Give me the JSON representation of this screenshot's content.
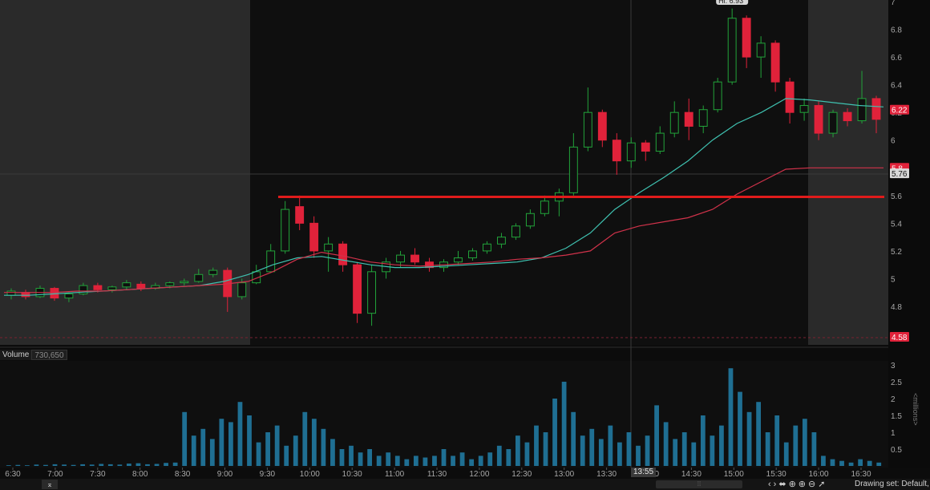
{
  "chart_data": [
    {
      "type": "candlestick",
      "title": "",
      "price_axis": {
        "ylim": [
          4.58,
          7.0
        ],
        "ticks": [
          "7",
          "6.8",
          "6.6",
          "6.4",
          "6.2",
          "6",
          "5.8",
          "5.6",
          "5.4",
          "5.2",
          "5",
          "4.8"
        ],
        "tick_values": [
          7.0,
          6.8,
          6.6,
          6.4,
          6.2,
          6.0,
          5.8,
          5.6,
          5.4,
          5.2,
          5.0,
          4.8
        ]
      },
      "price_labels": {
        "last": {
          "text": "6.22",
          "value": 6.22,
          "color": "#e0223a"
        },
        "cursor": {
          "text": "5.76",
          "value": 5.76
        },
        "ma_tag": {
          "text": "5.8",
          "value": 5.8,
          "color": "#e0223a"
        },
        "low": {
          "text": "4.58",
          "value": 4.58,
          "color": "#e0223a"
        },
        "high_tag": "Hi: 6.93"
      },
      "horizontal_line": {
        "value": 5.59,
        "color": "#e01b1b"
      },
      "session": {
        "premarket_end": "9:30",
        "postmarket_start": "16:00"
      },
      "moving_averages": [
        {
          "color": "#3fc1b0",
          "values": [
            4.88,
            4.88,
            4.89,
            4.9,
            4.91,
            4.92,
            4.93,
            4.94,
            4.95,
            4.98,
            5.03,
            5.1,
            5.15,
            5.16,
            5.13,
            5.1,
            5.08,
            5.08,
            5.09,
            5.1,
            5.11,
            5.12,
            5.15,
            5.22,
            5.33,
            5.5,
            5.62,
            5.73,
            5.85,
            6.0,
            6.12,
            6.2,
            6.3,
            6.29,
            6.27,
            6.25,
            6.24
          ]
        },
        {
          "color": "#d0324a",
          "values": [
            4.9,
            4.9,
            4.9,
            4.91,
            4.91,
            4.92,
            4.93,
            4.94,
            4.95,
            4.96,
            4.98,
            5.05,
            5.14,
            5.19,
            5.16,
            5.12,
            5.1,
            5.09,
            5.1,
            5.11,
            5.12,
            5.14,
            5.15,
            5.17,
            5.2,
            5.33,
            5.38,
            5.41,
            5.44,
            5.5,
            5.61,
            5.7,
            5.79,
            5.8,
            5.8,
            5.8,
            5.8
          ]
        }
      ],
      "candles": [
        {
          "o": 4.88,
          "h": 4.93,
          "l": 4.85,
          "c": 4.91
        },
        {
          "o": 4.9,
          "h": 4.92,
          "l": 4.85,
          "c": 4.87
        },
        {
          "o": 4.87,
          "h": 4.95,
          "l": 4.86,
          "c": 4.93
        },
        {
          "o": 4.93,
          "h": 4.94,
          "l": 4.84,
          "c": 4.86
        },
        {
          "o": 4.86,
          "h": 4.9,
          "l": 4.83,
          "c": 4.89
        },
        {
          "o": 4.89,
          "h": 4.97,
          "l": 4.88,
          "c": 4.95
        },
        {
          "o": 4.95,
          "h": 4.97,
          "l": 4.9,
          "c": 4.92
        },
        {
          "o": 4.92,
          "h": 4.95,
          "l": 4.9,
          "c": 4.94
        },
        {
          "o": 4.94,
          "h": 4.99,
          "l": 4.92,
          "c": 4.97
        },
        {
          "o": 4.96,
          "h": 4.98,
          "l": 4.91,
          "c": 4.93
        },
        {
          "o": 4.93,
          "h": 4.97,
          "l": 4.92,
          "c": 4.95
        },
        {
          "o": 4.95,
          "h": 4.98,
          "l": 4.93,
          "c": 4.97
        },
        {
          "o": 4.97,
          "h": 5.0,
          "l": 4.95,
          "c": 4.98
        },
        {
          "o": 4.98,
          "h": 5.07,
          "l": 4.97,
          "c": 5.03
        },
        {
          "o": 5.03,
          "h": 5.08,
          "l": 5.01,
          "c": 5.06
        },
        {
          "o": 5.06,
          "h": 5.08,
          "l": 4.76,
          "c": 4.87
        },
        {
          "o": 4.87,
          "h": 5.0,
          "l": 4.85,
          "c": 4.97
        },
        {
          "o": 4.97,
          "h": 5.1,
          "l": 4.96,
          "c": 5.05
        },
        {
          "o": 5.05,
          "h": 5.25,
          "l": 5.04,
          "c": 5.2
        },
        {
          "o": 5.2,
          "h": 5.56,
          "l": 5.18,
          "c": 5.5
        },
        {
          "o": 5.52,
          "h": 5.6,
          "l": 5.35,
          "c": 5.4
        },
        {
          "o": 5.4,
          "h": 5.45,
          "l": 5.15,
          "c": 5.2
        },
        {
          "o": 5.2,
          "h": 5.3,
          "l": 5.05,
          "c": 5.25
        },
        {
          "o": 5.25,
          "h": 5.27,
          "l": 5.05,
          "c": 5.1
        },
        {
          "o": 5.1,
          "h": 5.12,
          "l": 4.68,
          "c": 4.75
        },
        {
          "o": 4.75,
          "h": 5.1,
          "l": 4.66,
          "c": 5.05
        },
        {
          "o": 5.05,
          "h": 5.15,
          "l": 5.0,
          "c": 5.12
        },
        {
          "o": 5.12,
          "h": 5.2,
          "l": 5.08,
          "c": 5.17
        },
        {
          "o": 5.17,
          "h": 5.22,
          "l": 5.1,
          "c": 5.12
        },
        {
          "o": 5.12,
          "h": 5.15,
          "l": 5.05,
          "c": 5.08
        },
        {
          "o": 5.08,
          "h": 5.14,
          "l": 5.05,
          "c": 5.12
        },
        {
          "o": 5.12,
          "h": 5.2,
          "l": 5.1,
          "c": 5.15
        },
        {
          "o": 5.15,
          "h": 5.22,
          "l": 5.13,
          "c": 5.2
        },
        {
          "o": 5.2,
          "h": 5.27,
          "l": 5.18,
          "c": 5.25
        },
        {
          "o": 5.25,
          "h": 5.33,
          "l": 5.22,
          "c": 5.3
        },
        {
          "o": 5.3,
          "h": 5.4,
          "l": 5.28,
          "c": 5.38
        },
        {
          "o": 5.38,
          "h": 5.5,
          "l": 5.36,
          "c": 5.47
        },
        {
          "o": 5.47,
          "h": 5.6,
          "l": 5.45,
          "c": 5.56
        },
        {
          "o": 5.56,
          "h": 5.65,
          "l": 5.45,
          "c": 5.62
        },
        {
          "o": 5.62,
          "h": 6.05,
          "l": 5.6,
          "c": 5.95
        },
        {
          "o": 5.95,
          "h": 6.38,
          "l": 5.92,
          "c": 6.2
        },
        {
          "o": 6.2,
          "h": 6.22,
          "l": 5.95,
          "c": 6.0
        },
        {
          "o": 6.0,
          "h": 6.05,
          "l": 5.75,
          "c": 5.85
        },
        {
          "o": 5.85,
          "h": 6.02,
          "l": 5.8,
          "c": 5.98
        },
        {
          "o": 5.98,
          "h": 6.0,
          "l": 5.85,
          "c": 5.92
        },
        {
          "o": 5.92,
          "h": 6.1,
          "l": 5.9,
          "c": 6.05
        },
        {
          "o": 6.05,
          "h": 6.28,
          "l": 6.02,
          "c": 6.2
        },
        {
          "o": 6.2,
          "h": 6.3,
          "l": 6.0,
          "c": 6.1
        },
        {
          "o": 6.1,
          "h": 6.25,
          "l": 6.05,
          "c": 6.22
        },
        {
          "o": 6.22,
          "h": 6.45,
          "l": 6.2,
          "c": 6.42
        },
        {
          "o": 6.42,
          "h": 6.95,
          "l": 6.4,
          "c": 6.88
        },
        {
          "o": 6.88,
          "h": 6.9,
          "l": 6.52,
          "c": 6.6
        },
        {
          "o": 6.6,
          "h": 6.75,
          "l": 6.45,
          "c": 6.7
        },
        {
          "o": 6.7,
          "h": 6.72,
          "l": 6.35,
          "c": 6.42
        },
        {
          "o": 6.42,
          "h": 6.45,
          "l": 6.12,
          "c": 6.2
        },
        {
          "o": 6.2,
          "h": 6.3,
          "l": 6.14,
          "c": 6.25
        },
        {
          "o": 6.25,
          "h": 6.28,
          "l": 6.0,
          "c": 6.05
        },
        {
          "o": 6.05,
          "h": 6.22,
          "l": 6.02,
          "c": 6.2
        },
        {
          "o": 6.2,
          "h": 6.23,
          "l": 6.1,
          "c": 6.14
        },
        {
          "o": 6.14,
          "h": 6.5,
          "l": 6.12,
          "c": 6.3
        },
        {
          "o": 6.3,
          "h": 6.32,
          "l": 6.05,
          "c": 6.15
        }
      ]
    },
    {
      "type": "bar",
      "title": "Volume",
      "value_label": "730,650",
      "unit_label": "<millions>",
      "ylim": [
        0,
        3.0
      ],
      "ticks": [
        "3",
        "2.5",
        "2",
        "1.5",
        "1",
        "0.5"
      ],
      "tick_values": [
        3.0,
        2.5,
        2.0,
        1.5,
        1.0,
        0.5
      ],
      "colors": {
        "bars": "#1f6f93"
      },
      "values": [
        0.02,
        0.03,
        0.02,
        0.04,
        0.03,
        0.05,
        0.04,
        0.03,
        0.05,
        0.04,
        0.06,
        0.05,
        0.04,
        0.07,
        0.08,
        0.05,
        0.06,
        0.09,
        0.1,
        1.6,
        0.9,
        1.1,
        0.8,
        1.4,
        1.3,
        1.9,
        1.5,
        0.7,
        1.0,
        1.2,
        0.6,
        0.9,
        1.6,
        1.4,
        1.1,
        0.8,
        0.5,
        0.6,
        0.4,
        0.5,
        0.3,
        0.4,
        0.3,
        0.2,
        0.3,
        0.25,
        0.3,
        0.5,
        0.3,
        0.4,
        0.2,
        0.3,
        0.4,
        0.6,
        0.5,
        0.9,
        0.7,
        1.2,
        1.0,
        2.0,
        2.5,
        1.6,
        0.9,
        1.1,
        0.8,
        1.2,
        0.7,
        1.0,
        0.6,
        0.9,
        1.8,
        1.3,
        0.8,
        1.0,
        0.7,
        1.5,
        0.9,
        1.2,
        2.9,
        2.2,
        1.6,
        1.9,
        1.0,
        1.5,
        0.7,
        1.2,
        1.4,
        1.0,
        0.3,
        0.2,
        0.15,
        0.1,
        0.2,
        0.15,
        0.1
      ]
    }
  ],
  "time_axis": {
    "labels": [
      "6:30",
      "7:00",
      "7:30",
      "8:00",
      "8:30",
      "9:00",
      "9:30",
      "10:00",
      "10:30",
      "11:00",
      "11:30",
      "12:00",
      "12:30",
      "13:00",
      "13:30",
      "14:00",
      "14:30",
      "15:00",
      "15:30",
      "16:00",
      "16:30"
    ],
    "cursor_label": "13:55"
  },
  "toolbar": {
    "pan_icon": "pan-up-icon",
    "icons": [
      "arrow-left-icon",
      "arrow-right-icon",
      "resize-horizontal-icon",
      "crosshair-icon",
      "zoom-in-icon",
      "zoom-out-icon",
      "pointer-icon"
    ],
    "icon_glyphs": [
      "‹",
      "›",
      "⬌",
      "⊕",
      "⊕",
      "⊖",
      "➚"
    ],
    "drawing_set": "Drawing set: Default,"
  }
}
